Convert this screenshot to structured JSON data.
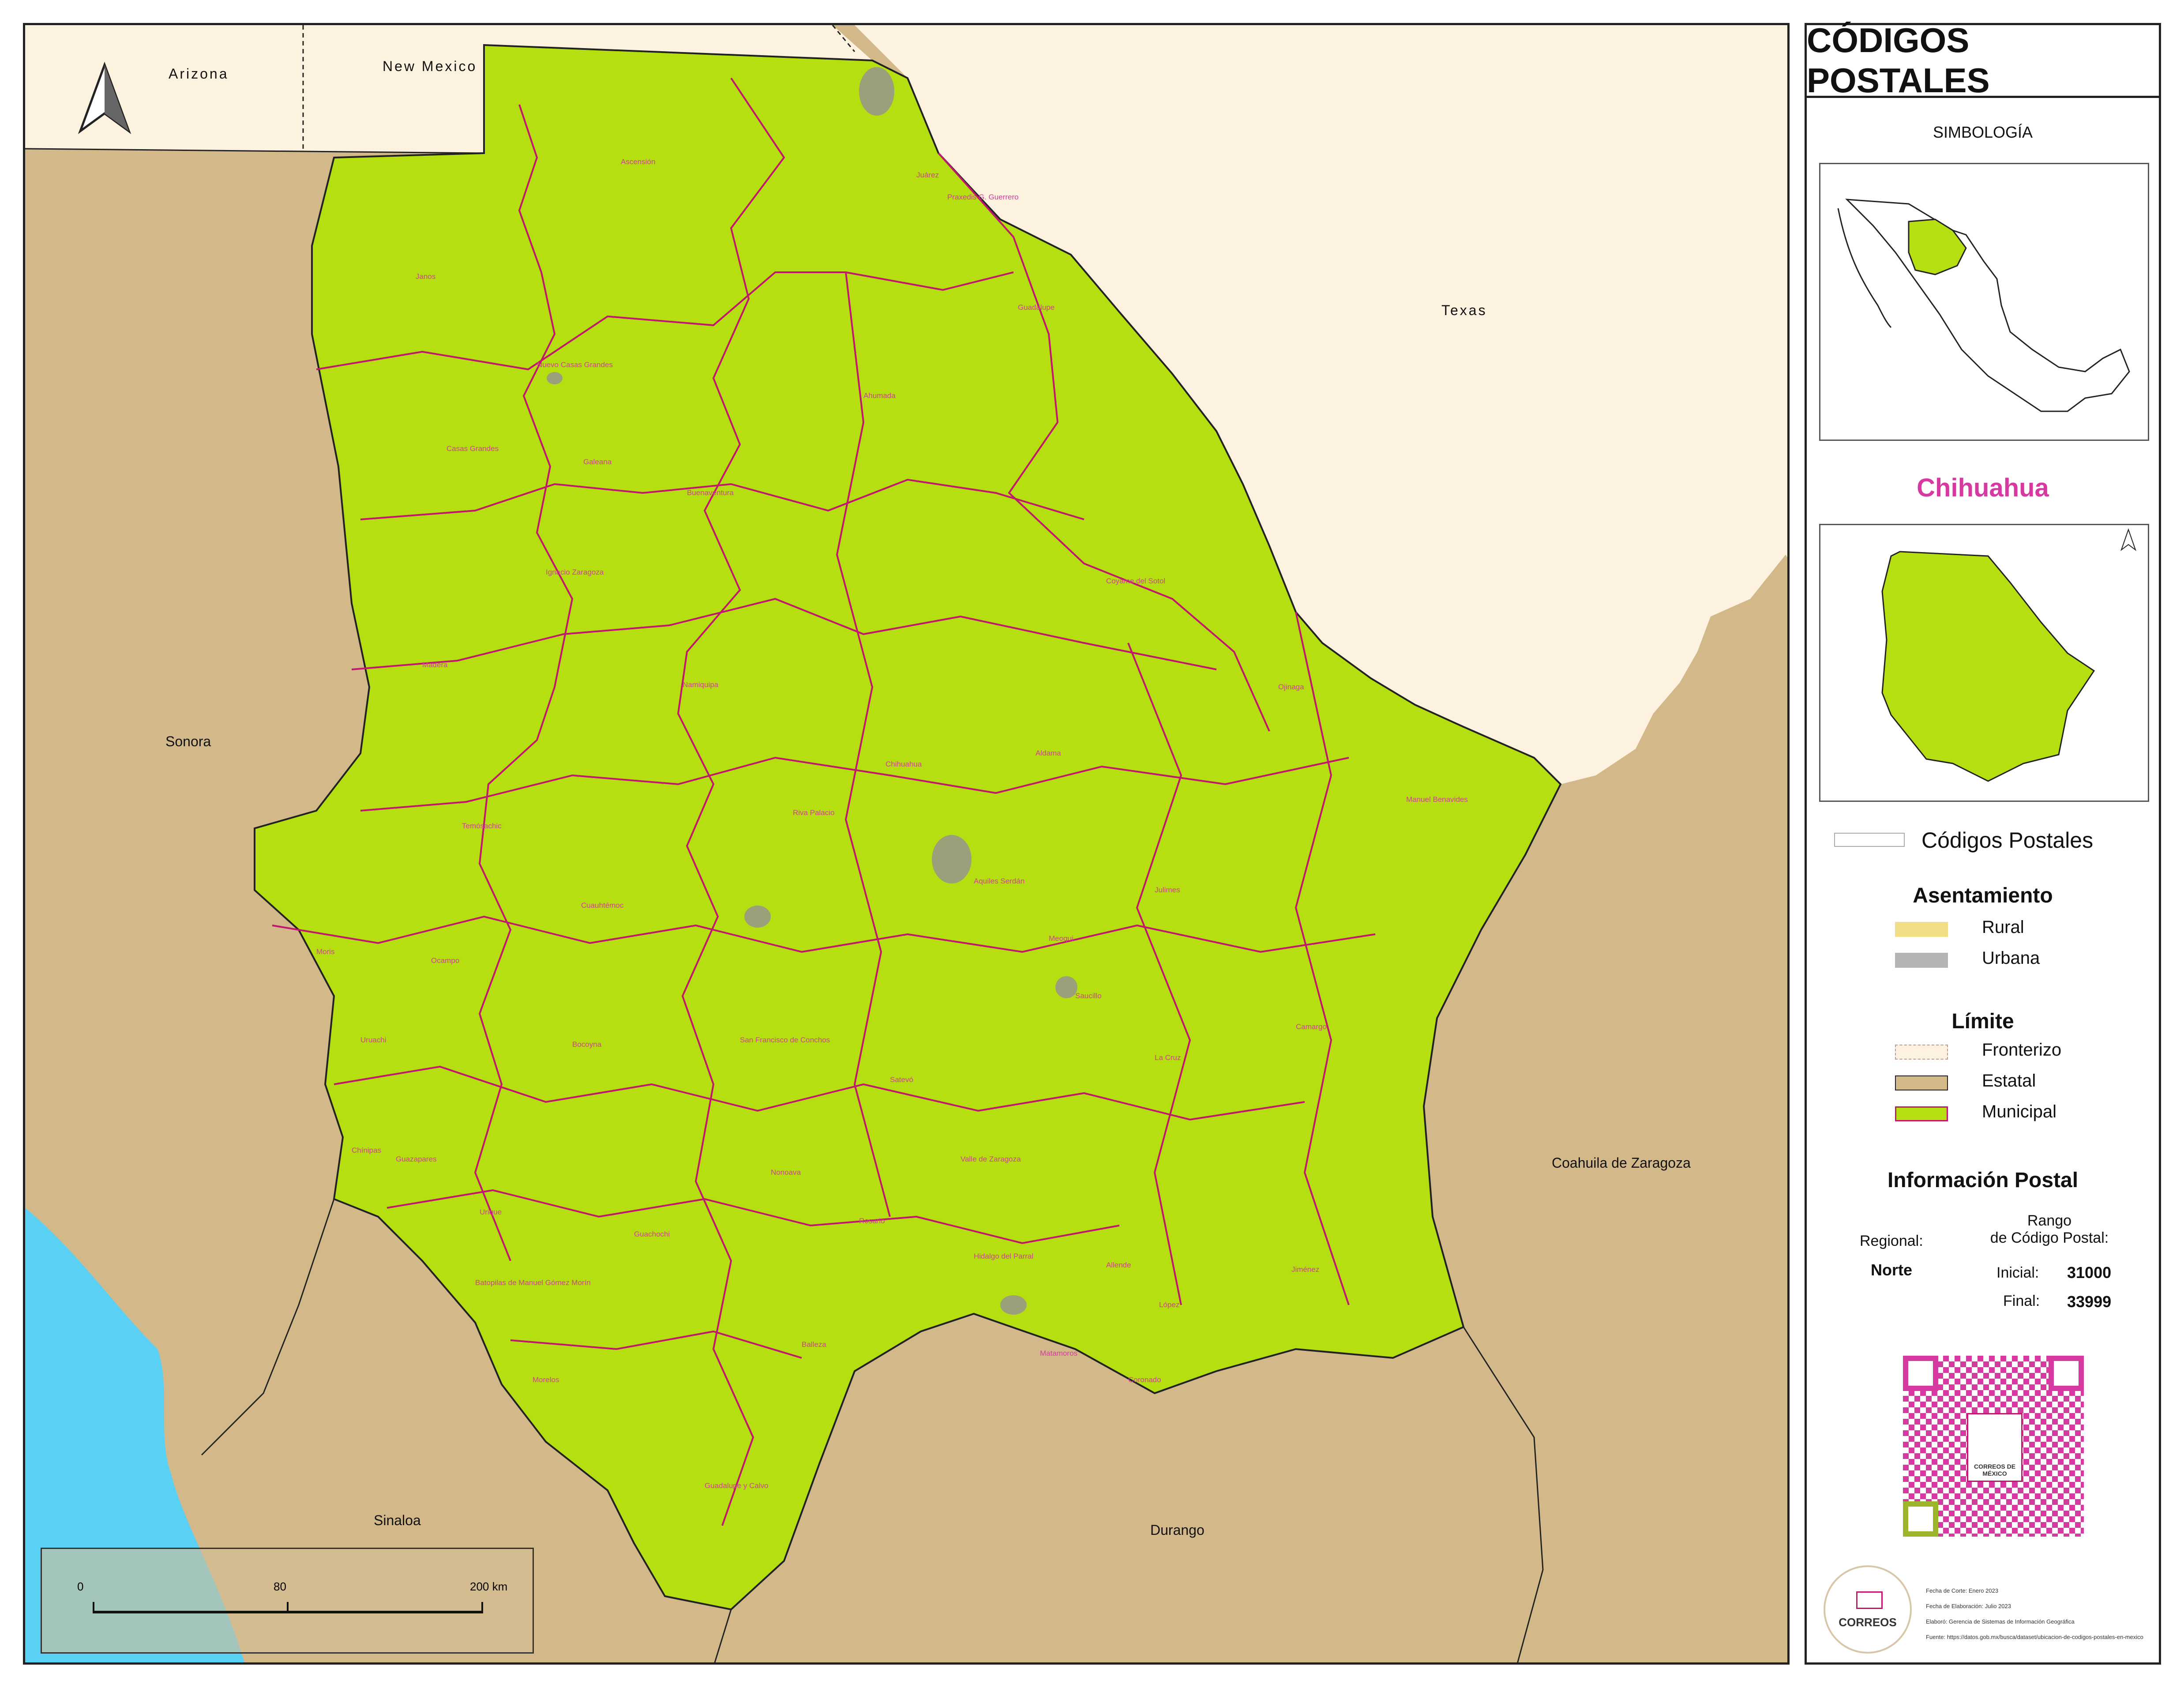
{
  "panel": {
    "title": "CÓDIGOS POSTALES",
    "symbology_heading": "SIMBOLOGÍA",
    "state_name": "Chihuahua",
    "postal_codes_label": "Códigos Postales",
    "settlement_heading": "Asentamiento",
    "settlement_items": [
      {
        "label": "Rural",
        "color": "#f1de86"
      },
      {
        "label": "Urbana",
        "color": "#b4b4b4"
      }
    ],
    "limit_heading": "Límite",
    "limit_items": [
      {
        "label": "Fronterizo",
        "color": "#fdf2df"
      },
      {
        "label": "Estatal",
        "color": "#d3b98a"
      },
      {
        "label": "Municipal",
        "color": "#b5df10"
      }
    ],
    "postal_info_heading": "Información Postal",
    "range_label": "Rango\nde Código Postal:",
    "regional_label": "Regional:",
    "regional_value": "Norte",
    "initial_label": "Inicial:",
    "initial_value": "31000",
    "final_label": "Final:",
    "final_value": "33999",
    "logo_text": "CORREOS",
    "qr_logo_text": "CORREOS DE MÉXICO",
    "credits": [
      "Fecha de Corte: Enero 2023",
      "Fecha de Elaboración: Julio 2023",
      "Elaboró: Gerencia de Sistemas de Información Geográfica",
      "Fuente: https://datos.gob.mx/busca/dataset/ubicacion-de-codigos-postales-en-mexico"
    ]
  },
  "map": {
    "neighbors": [
      "Arizona",
      "New Mexico",
      "Texas",
      "Sonora",
      "Sinaloa",
      "Durango",
      "Coahuila de Zaragoza"
    ],
    "municipalities": [
      "Ascensión",
      "Janos",
      "Juárez",
      "Praxedis G. Guerrero",
      "Guadalupe",
      "Nuevo Casas Grandes",
      "Casas Grandes",
      "Galeana",
      "Buenaventura",
      "Ahumada",
      "Ignacio Zaragoza",
      "Coyame del Sotol",
      "Madera",
      "Namiquipa",
      "Ojinaga",
      "Chihuahua",
      "Aldama",
      "Manuel Benavides",
      "Temósachic",
      "Riva Palacio",
      "Aquiles Serdán",
      "Julimes",
      "Moris",
      "Ocampo",
      "Cuauhtémoc",
      "Meoqui",
      "Saucillo",
      "Camargo",
      "Uruachi",
      "Bocoyna",
      "Satevó",
      "La Cruz",
      "Chínipas",
      "Guazapares",
      "Nonoava",
      "San Francisco de Conchos",
      "Valle de Zaragoza",
      "Rosario",
      "Guachochi",
      "Hidalgo del Parral",
      "Jiménez",
      "Allende",
      "López",
      "Balleza",
      "Matamoros",
      "Coronado",
      "Guadalupe y Calvo",
      "Morelos",
      "Batopilas de Manuel Gómez Morín",
      "Urique"
    ],
    "scale": {
      "labels": [
        "0",
        "80",
        "200 km"
      ]
    },
    "colors": {
      "state": "#b5df10",
      "us": "#fdf2df",
      "mexico": "#d3b98a",
      "sea": "#5bd0f5",
      "municipal_line": "#c0186d"
    }
  }
}
